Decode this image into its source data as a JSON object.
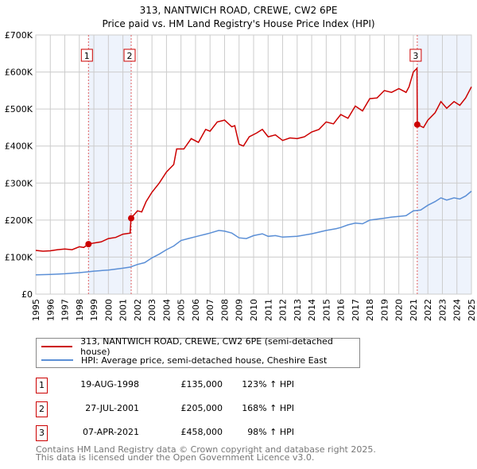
{
  "title": "313, NANTWICH ROAD, CREWE, CW2 6PE",
  "subtitle": "Price paid vs. HM Land Registry's House Price Index (HPI)",
  "colors": {
    "property": "#cc0000",
    "hpi": "#5b8fd6",
    "shade": "#eef3fc"
  },
  "chart_data": {
    "type": "line",
    "xlim": [
      1995,
      2025
    ],
    "ylim": [
      0,
      700000
    ],
    "yticks": [
      {
        "v": 0,
        "label": "£0"
      },
      {
        "v": 100000,
        "label": "£100K"
      },
      {
        "v": 200000,
        "label": "£200K"
      },
      {
        "v": 300000,
        "label": "£300K"
      },
      {
        "v": 400000,
        "label": "£400K"
      },
      {
        "v": 500000,
        "label": "£500K"
      },
      {
        "v": 600000,
        "label": "£600K"
      },
      {
        "v": 700000,
        "label": "£700K"
      }
    ],
    "xticks": [
      "1995",
      "1996",
      "1997",
      "1998",
      "1999",
      "2000",
      "2001",
      "2002",
      "2003",
      "2004",
      "2005",
      "2006",
      "2007",
      "2008",
      "2009",
      "2010",
      "2011",
      "2012",
      "2013",
      "2014",
      "2015",
      "2016",
      "2017",
      "2018",
      "2019",
      "2020",
      "2021",
      "2022",
      "2023",
      "2024",
      "2025"
    ],
    "grid": true,
    "shaded_ranges": [
      [
        1998.63,
        2001.57
      ],
      [
        2021.27,
        2025
      ]
    ],
    "series": [
      {
        "name": "313, NANTWICH ROAD, CREWE, CW2 6PE (semi-detached house)",
        "color": "#cc0000",
        "x": [
          1995,
          1995.5,
          1996,
          1996.5,
          1997,
          1997.5,
          1998,
          1998.3,
          1998.63,
          1999,
          1999.5,
          2000,
          2000.5,
          2001,
          2001.5,
          2001.56,
          2002,
          2002.3,
          2002.6,
          2003,
          2003.5,
          2004,
          2004.5,
          2004.7,
          2005.2,
          2005.7,
          2006.2,
          2006.7,
          2007,
          2007.5,
          2008,
          2008.5,
          2008.7,
          2009,
          2009.3,
          2009.7,
          2010.2,
          2010.6,
          2011,
          2011.5,
          2012,
          2012.5,
          2013,
          2013.5,
          2014,
          2014.5,
          2015,
          2015.5,
          2015.7,
          2016,
          2016.5,
          2017,
          2017.5,
          2018,
          2018.5,
          2019,
          2019.5,
          2020,
          2020.5,
          2020.7,
          2021,
          2021.25,
          2021.27,
          2021.7,
          2022,
          2022.5,
          2022.9,
          2023.3,
          2023.8,
          2024.2,
          2024.6,
          2025
        ],
        "y": [
          118000,
          116000,
          117000,
          120000,
          122000,
          120000,
          128000,
          126000,
          135000,
          138000,
          141000,
          150000,
          153000,
          162000,
          165000,
          205000,
          225000,
          222000,
          250000,
          275000,
          300000,
          330000,
          350000,
          392000,
          392000,
          420000,
          410000,
          445000,
          440000,
          465000,
          470000,
          452000,
          455000,
          405000,
          400000,
          425000,
          435000,
          445000,
          425000,
          430000,
          415000,
          422000,
          420000,
          425000,
          438000,
          445000,
          465000,
          460000,
          470000,
          485000,
          475000,
          508000,
          495000,
          528000,
          530000,
          550000,
          545000,
          555000,
          545000,
          560000,
          600000,
          610000,
          458000,
          450000,
          470000,
          490000,
          520000,
          502000,
          520000,
          510000,
          530000,
          560000
        ]
      },
      {
        "name": "HPI: Average price, semi-detached house, Cheshire East",
        "color": "#5b8fd6",
        "x": [
          1995,
          1996,
          1997,
          1998,
          1998.5,
          1999,
          2000,
          2001,
          2001.5,
          2002,
          2002.5,
          2003,
          2003.5,
          2004,
          2004.5,
          2005,
          2005.5,
          2006,
          2006.7,
          2007,
          2007.6,
          2008,
          2008.5,
          2009,
          2009.5,
          2010,
          2010.6,
          2011,
          2011.5,
          2012,
          2013,
          2014,
          2015,
          2015.7,
          2016,
          2016.5,
          2017,
          2017.5,
          2018,
          2019,
          2019.5,
          2020,
          2020.5,
          2021,
          2021.5,
          2022,
          2022.5,
          2022.9,
          2023.3,
          2023.8,
          2024.2,
          2024.6,
          2025
        ],
        "y": [
          52000,
          53000,
          55000,
          58000,
          60000,
          62000,
          65000,
          70000,
          73000,
          80000,
          85000,
          98000,
          108000,
          120000,
          130000,
          145000,
          150000,
          155000,
          162000,
          165000,
          172000,
          170000,
          165000,
          152000,
          150000,
          158000,
          163000,
          156000,
          158000,
          154000,
          156000,
          163000,
          172000,
          177000,
          180000,
          187000,
          192000,
          190000,
          200000,
          205000,
          208000,
          210000,
          212000,
          225000,
          227000,
          240000,
          250000,
          260000,
          254000,
          260000,
          257000,
          265000,
          278000
        ]
      }
    ],
    "sales": [
      {
        "label": "1",
        "x": 1998.63,
        "y": 135000
      },
      {
        "label": "2",
        "x": 2001.57,
        "y": 205000
      },
      {
        "label": "3",
        "x": 2021.27,
        "y": 458000
      }
    ]
  },
  "legend": {
    "property": "313, NANTWICH ROAD, CREWE, CW2 6PE (semi-detached house)",
    "hpi": "HPI: Average price, semi-detached house, Cheshire East"
  },
  "transactions": [
    {
      "num": "1",
      "date": "19-AUG-1998",
      "price": "£135,000",
      "hpi": "123% ↑ HPI"
    },
    {
      "num": "2",
      "date": "27-JUL-2001",
      "price": "£205,000",
      "hpi": "168% ↑ HPI"
    },
    {
      "num": "3",
      "date": "07-APR-2021",
      "price": "£458,000",
      "hpi": "98% ↑ HPI"
    }
  ],
  "footer": {
    "line1": "Contains HM Land Registry data © Crown copyright and database right 2025.",
    "line2": "This data is licensed under the Open Government Licence v3.0."
  }
}
